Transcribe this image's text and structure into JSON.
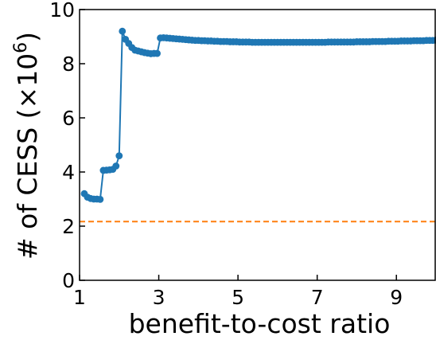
{
  "chart_data": {
    "type": "line",
    "xlabel": "benefit-to-cost ratio",
    "ylabel_main": "# of CESS (×10",
    "ylabel_sup": "6",
    "ylabel_close": ")",
    "xlim": [
      1,
      10
    ],
    "ylim": [
      0,
      10
    ],
    "xticks": [
      1,
      3,
      5,
      7,
      9
    ],
    "yticks": [
      0,
      2,
      4,
      6,
      8,
      10
    ],
    "grid": false,
    "series": [
      {
        "color": "#1f77b4",
        "marker": "circle",
        "x": [
          1.12,
          1.2,
          1.28,
          1.36,
          1.44,
          1.52,
          1.6,
          1.68,
          1.76,
          1.84,
          1.92,
          2.0,
          2.08,
          2.16,
          2.24,
          2.32,
          2.4,
          2.48,
          2.56,
          2.64,
          2.72,
          2.8,
          2.88,
          2.96,
          3.04,
          3.12,
          3.2,
          3.28,
          3.36,
          3.44,
          3.52,
          3.6,
          3.68,
          3.76,
          3.84,
          3.92,
          4.0,
          4.08,
          4.16,
          4.24,
          4.32,
          4.4,
          4.48,
          4.56,
          4.64,
          4.72,
          4.8,
          4.88,
          4.96,
          5.04,
          5.12,
          5.2,
          5.28,
          5.36,
          5.44,
          5.52,
          5.6,
          5.68,
          5.76,
          5.84,
          5.92,
          6.0,
          6.08,
          6.16,
          6.24,
          6.32,
          6.4,
          6.48,
          6.56,
          6.64,
          6.72,
          6.8,
          6.88,
          6.96,
          7.04,
          7.12,
          7.2,
          7.28,
          7.36,
          7.44,
          7.52,
          7.6,
          7.68,
          7.76,
          7.84,
          7.92,
          8.0,
          8.08,
          8.16,
          8.24,
          8.32,
          8.4,
          8.48,
          8.56,
          8.64,
          8.72,
          8.8,
          8.88,
          8.96,
          9.04,
          9.12,
          9.2,
          9.28,
          9.36,
          9.44,
          9.52,
          9.6,
          9.68,
          9.76,
          9.84,
          9.92,
          10.0
        ],
        "y": [
          3.2,
          3.07,
          3.02,
          3.0,
          3.0,
          2.99,
          4.06,
          4.07,
          4.08,
          4.1,
          4.22,
          4.6,
          9.2,
          8.9,
          8.75,
          8.6,
          8.5,
          8.47,
          8.44,
          8.41,
          8.39,
          8.37,
          8.38,
          8.38,
          8.95,
          8.96,
          8.95,
          8.94,
          8.93,
          8.92,
          8.91,
          8.9,
          8.89,
          8.88,
          8.87,
          8.86,
          8.86,
          8.85,
          8.85,
          8.84,
          8.84,
          8.83,
          8.83,
          8.82,
          8.82,
          8.82,
          8.81,
          8.81,
          8.81,
          8.8,
          8.8,
          8.8,
          8.8,
          8.79,
          8.79,
          8.79,
          8.79,
          8.79,
          8.79,
          8.79,
          8.79,
          8.79,
          8.79,
          8.79,
          8.79,
          8.79,
          8.79,
          8.79,
          8.79,
          8.79,
          8.79,
          8.79,
          8.79,
          8.79,
          8.79,
          8.79,
          8.79,
          8.8,
          8.8,
          8.8,
          8.8,
          8.8,
          8.8,
          8.8,
          8.8,
          8.8,
          8.81,
          8.81,
          8.81,
          8.81,
          8.81,
          8.82,
          8.82,
          8.82,
          8.82,
          8.82,
          8.83,
          8.83,
          8.83,
          8.83,
          8.84,
          8.84,
          8.84,
          8.84,
          8.85,
          8.85,
          8.85,
          8.85,
          8.86,
          8.86,
          8.86,
          8.87
        ]
      }
    ],
    "reference_line": {
      "y": 2.17,
      "color": "#ff7f0e",
      "style": "dashed"
    }
  }
}
